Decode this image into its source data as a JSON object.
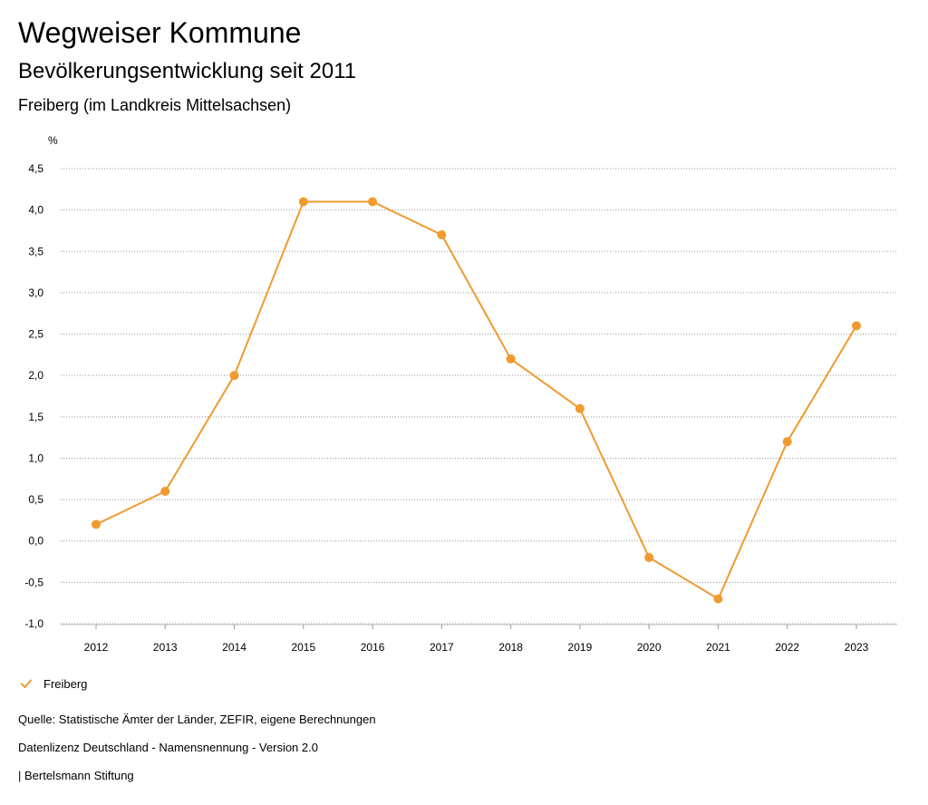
{
  "header": {
    "title": "Wegweiser Kommune",
    "subtitle": "Bevölkerungsentwicklung seit 2011",
    "region": "Freiberg (im Landkreis Mittelsachsen)"
  },
  "chart_data": {
    "type": "line",
    "title": "Bevölkerungsentwicklung seit 2011",
    "xlabel": "",
    "ylabel": "%",
    "ylim": [
      -1.0,
      4.5
    ],
    "yticks": [
      "-1,0",
      "-0,5",
      "0,0",
      "0,5",
      "1,0",
      "1,5",
      "2,0",
      "2,5",
      "3,0",
      "3,5",
      "4,0",
      "4,5"
    ],
    "ytick_values": [
      -1.0,
      -0.5,
      0.0,
      0.5,
      1.0,
      1.5,
      2.0,
      2.5,
      3.0,
      3.5,
      4.0,
      4.5
    ],
    "categories": [
      "2012",
      "2013",
      "2014",
      "2015",
      "2016",
      "2017",
      "2018",
      "2019",
      "2020",
      "2021",
      "2022",
      "2023"
    ],
    "series": [
      {
        "name": "Freiberg",
        "color": "#f09a30",
        "values": [
          0.2,
          0.6,
          2.0,
          4.1,
          4.1,
          3.7,
          2.2,
          1.6,
          -0.2,
          -0.7,
          1.2,
          2.6
        ]
      }
    ],
    "grid": true,
    "legend": "bottom-left"
  },
  "legend": {
    "items": [
      {
        "label": "Freiberg",
        "icon": "check-icon",
        "color": "#f09a30"
      }
    ]
  },
  "footer": {
    "source": "Quelle: Statistische Ämter der Länder, ZEFIR, eigene Berechnungen",
    "license": "Datenlizenz Deutschland - Namensnennung - Version 2.0",
    "credit": "| Bertelsmann Stiftung"
  }
}
